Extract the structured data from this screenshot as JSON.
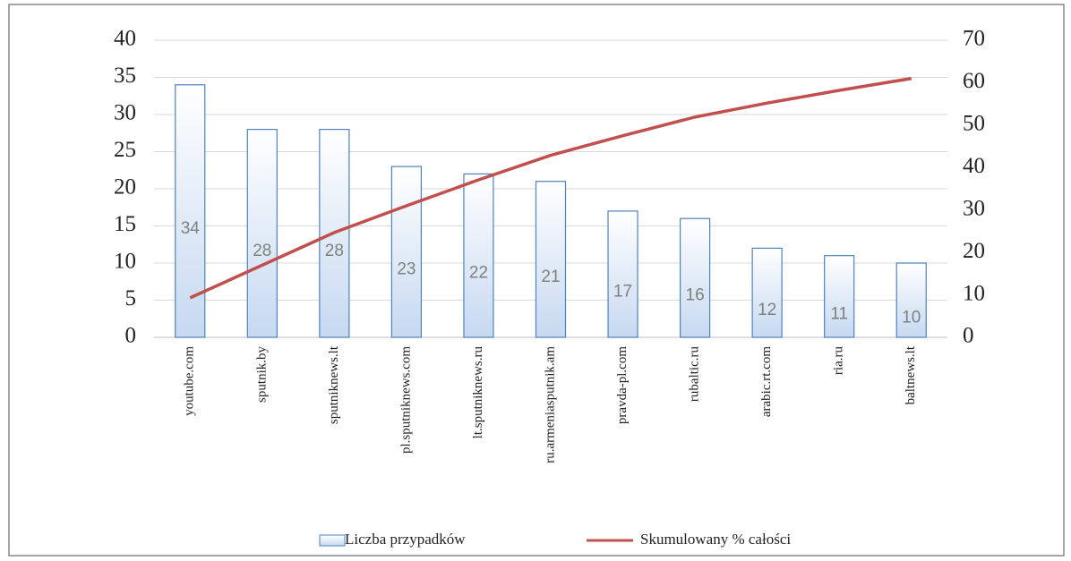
{
  "chart_data": {
    "type": "bar",
    "categories": [
      "youtube.com",
      "sputnik.by",
      "sputniknews.lt",
      "pl.sputniknews.com",
      "lt.sputniknews.ru",
      "ru.armeniasputnik.am",
      "pravda-pl.com",
      "rubaltic.ru",
      "arabic.rt.com",
      "ria.ru",
      "baltnews.lt"
    ],
    "series": [
      {
        "name": "Liczba przypadków",
        "type": "bar",
        "color": "#c6d9f1",
        "edge": "#4f81bd",
        "values": [
          34,
          28,
          28,
          23,
          22,
          21,
          17,
          16,
          12,
          11,
          10
        ]
      },
      {
        "name": "Skumulowany % całości",
        "type": "line",
        "axis": "y2",
        "color": "#c0504d",
        "values": [
          9.3,
          17.0,
          24.7,
          31.0,
          37.1,
          42.9,
          47.5,
          51.9,
          55.2,
          58.2,
          61.0
        ]
      }
    ],
    "ylim": [
      0,
      40
    ],
    "yticks": [
      0,
      5,
      10,
      15,
      20,
      25,
      30,
      35,
      40
    ],
    "y2lim": [
      0,
      70
    ],
    "y2ticks": [
      0,
      10,
      20,
      30,
      40,
      50,
      60,
      70
    ],
    "grid": true,
    "legend": "bottom"
  }
}
